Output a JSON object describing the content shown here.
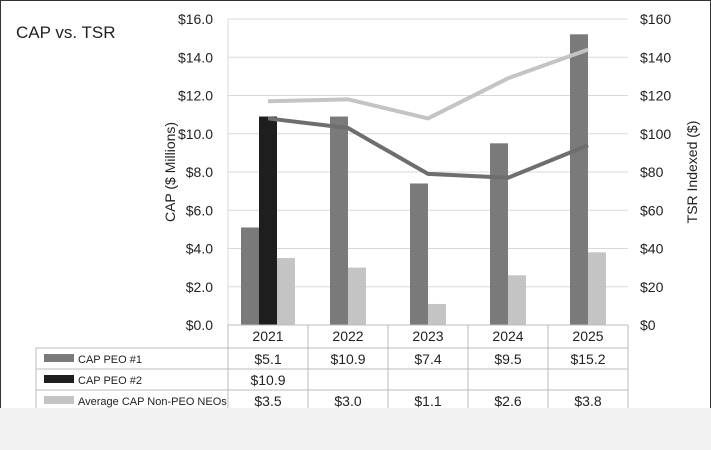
{
  "chart_data": {
    "type": "bar",
    "title": "CAP vs. TSR",
    "categories": [
      "2021",
      "2022",
      "2023",
      "2024",
      "2025"
    ],
    "ylabel": "CAP ($ Millions)",
    "ylim": [
      0,
      16
    ],
    "yticks": [
      "$0.0",
      "$2.0",
      "$4.0",
      "$6.0",
      "$8.0",
      "$10.0",
      "$12.0",
      "$14.0",
      "$16.0"
    ],
    "y2label": "TSR Indexed ($)",
    "y2lim": [
      0,
      160
    ],
    "y2ticks": [
      "$0",
      "$20",
      "$40",
      "$60",
      "$80",
      "$100",
      "$120",
      "$140",
      "$160"
    ],
    "grid": true,
    "colors": {
      "peo1": "#7a7a7a",
      "peo2": "#1e1e1e",
      "neo": "#c4c4c4",
      "line_dark": "#6e6e6e",
      "line_light": "#c4c4c4"
    },
    "series": [
      {
        "name": "CAP PEO #1",
        "type": "bar",
        "values": [
          5.1,
          10.9,
          7.4,
          9.5,
          15.2
        ],
        "labels": [
          "$5.1",
          "$10.9",
          "$7.4",
          "$9.5",
          "$15.2"
        ]
      },
      {
        "name": "CAP PEO #2",
        "type": "bar",
        "values": [
          10.9,
          null,
          null,
          null,
          null
        ],
        "labels": [
          "$10.9",
          "",
          "",
          "",
          ""
        ]
      },
      {
        "name": "Average CAP Non-PEO NEOs",
        "type": "bar",
        "values": [
          3.5,
          3.0,
          1.1,
          2.6,
          3.8
        ],
        "labels": [
          "$3.5",
          "$3.0",
          "$1.1",
          "$2.6",
          "$3.8"
        ]
      },
      {
        "type": "line",
        "axis": "right",
        "values": [
          108,
          103,
          79,
          77,
          94
        ]
      },
      {
        "type": "line",
        "axis": "right",
        "values": [
          117,
          118,
          108,
          129,
          144
        ]
      }
    ]
  }
}
